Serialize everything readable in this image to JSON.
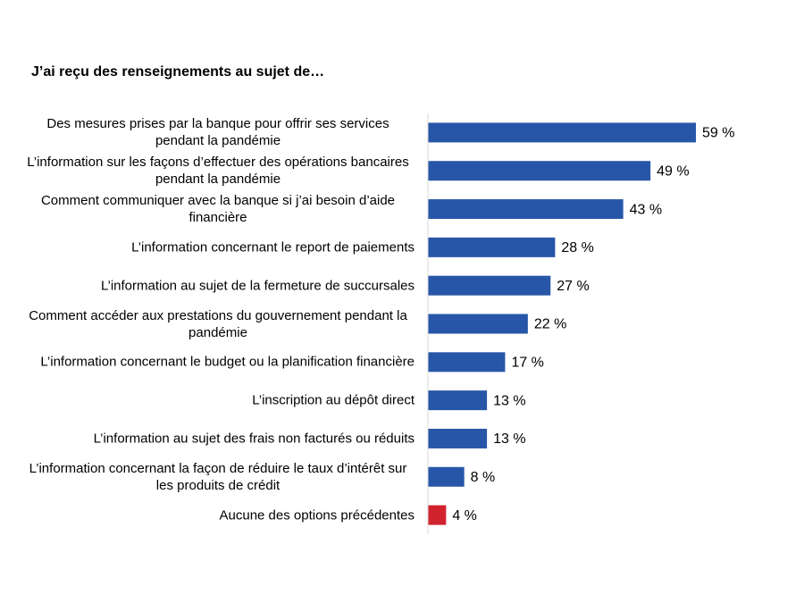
{
  "chart_data": {
    "type": "bar",
    "orientation": "horizontal",
    "title": "J’ai reçu des renseignements au sujet de…",
    "categories": [
      "Des mesures prises par la banque pour offrir ses services pendant la pandémie",
      "L’information sur les façons d’effectuer des opérations bancaires pendant la pandémie",
      "Comment communiquer avec la banque si j’ai besoin d’aide financière",
      "L’information concernant le report de paiements",
      "L’information au sujet de la fermeture de succursales",
      "Comment accéder aux prestations du gouvernement pendant la pandémie",
      "L’information concernant le budget ou la planification financière",
      "L’inscription au dépôt direct",
      "L’information au sujet des frais non facturés ou réduits",
      "L’information concernant la façon de réduire le taux d’intérêt sur les produits de crédit",
      "Aucune des options précédentes"
    ],
    "values": [
      59,
      49,
      43,
      28,
      27,
      22,
      17,
      13,
      13,
      8,
      4
    ],
    "value_labels": [
      "59 %",
      "49 %",
      "43 %",
      "28 %",
      "27 %",
      "22 %",
      "17 %",
      "13 %",
      "13 %",
      "8 %",
      "4 %"
    ],
    "colors": [
      "#2756a8",
      "#2756a8",
      "#2756a8",
      "#2756a8",
      "#2756a8",
      "#2756a8",
      "#2756a8",
      "#2756a8",
      "#2756a8",
      "#2756a8",
      "#d1232e"
    ]
  }
}
